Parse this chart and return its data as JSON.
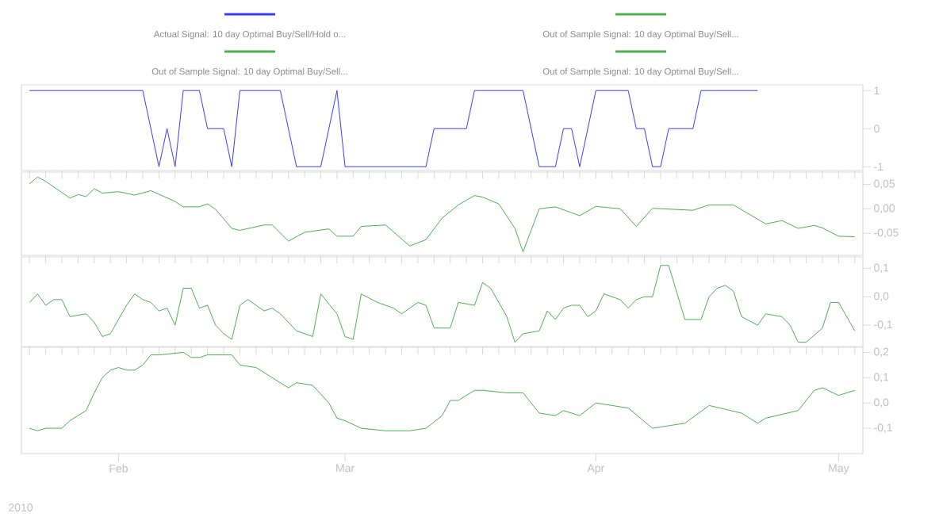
{
  "chart_data": [
    {
      "type": "line",
      "legend": "top",
      "tick_labels": "y",
      "xlim": [
        "2010-01-20",
        "2010-05-04"
      ],
      "ylim": [
        -1.1,
        1.15
      ],
      "yticks": [
        -1,
        0,
        1
      ],
      "series": [
        {
          "name": "Actual Signal: 10 day Optimal Buy/Sell/Hold o...",
          "color": "#3b3bff",
          "x": [
            "2010-01-21",
            "2010-02-04",
            "2010-02-06",
            "2010-02-07",
            "2010-02-08",
            "2010-02-09",
            "2010-02-11",
            "2010-02-12",
            "2010-02-14",
            "2010-02-15",
            "2010-02-16",
            "2010-02-21",
            "2010-02-23",
            "2010-02-26",
            "2010-02-28",
            "2010-03-01",
            "2010-03-11",
            "2010-03-12",
            "2010-03-16",
            "2010-03-17",
            "2010-03-23",
            "2010-03-25",
            "2010-03-27",
            "2010-03-28",
            "2010-03-29",
            "2010-03-30",
            "2010-04-01",
            "2010-04-05",
            "2010-04-06",
            "2010-04-07",
            "2010-04-08",
            "2010-04-09",
            "2010-04-10",
            "2010-04-13",
            "2010-04-14",
            "2010-04-21"
          ],
          "values": [
            1,
            1,
            -1,
            0,
            -1,
            1,
            1,
            0,
            0,
            -1,
            1,
            1,
            -1,
            -1,
            1,
            -1,
            -1,
            0,
            0,
            1,
            1,
            -1,
            -1,
            0,
            0,
            -1,
            1,
            1,
            0,
            0,
            -1,
            -1,
            0,
            0,
            1,
            1
          ]
        }
      ]
    },
    {
      "type": "line",
      "tick_labels": "y",
      "xlim": [
        "2010-01-20",
        "2010-05-04"
      ],
      "ylim": [
        -0.095,
        0.075
      ],
      "yticks": [
        {
          "value": -0.05,
          "label": "-0,05"
        },
        {
          "value": 0,
          "label": "0,00"
        },
        {
          "value": 0.05,
          "label": "0,05"
        }
      ],
      "series": [
        {
          "name": "Out of Sample Signal: 10 day Optimal Buy/Sell...",
          "color": "#4caf50",
          "x": [
            "2010-01-21",
            "2010-01-22",
            "2010-01-23",
            "2010-01-26",
            "2010-01-27",
            "2010-01-28",
            "2010-01-29",
            "2010-01-30",
            "2010-02-01",
            "2010-02-03",
            "2010-02-05",
            "2010-02-08",
            "2010-02-09",
            "2010-02-11",
            "2010-02-12",
            "2010-02-13",
            "2010-02-15",
            "2010-02-16",
            "2010-02-19",
            "2010-02-20",
            "2010-02-22",
            "2010-02-24",
            "2010-02-27",
            "2010-02-28",
            "2010-03-02",
            "2010-03-03",
            "2010-03-06",
            "2010-03-09",
            "2010-03-11",
            "2010-03-13",
            "2010-03-15",
            "2010-03-17",
            "2010-03-18",
            "2010-03-20",
            "2010-03-22",
            "2010-03-23",
            "2010-03-25",
            "2010-03-27",
            "2010-03-30",
            "2010-04-01",
            "2010-04-04",
            "2010-04-06",
            "2010-04-08",
            "2010-04-13",
            "2010-04-15",
            "2010-04-18",
            "2010-04-22",
            "2010-04-24",
            "2010-04-26",
            "2010-04-28",
            "2010-04-29",
            "2010-05-01",
            "2010-05-03"
          ],
          "values": [
            0.051,
            0.065,
            0.056,
            0.022,
            0.029,
            0.025,
            0.041,
            0.032,
            0.035,
            0.028,
            0.037,
            0.015,
            0.004,
            0.004,
            0.01,
            -0.001,
            -0.04,
            -0.044,
            -0.033,
            -0.033,
            -0.066,
            -0.048,
            -0.041,
            -0.056,
            -0.056,
            -0.036,
            -0.033,
            -0.076,
            -0.063,
            -0.019,
            0.008,
            0.027,
            0.024,
            0.01,
            -0.04,
            -0.088,
            0.0,
            0.004,
            -0.014,
            0.005,
            0.0,
            -0.036,
            0.001,
            -0.003,
            0.008,
            0.008,
            -0.031,
            -0.024,
            -0.04,
            -0.034,
            -0.039,
            -0.056,
            -0.057
          ]
        }
      ]
    },
    {
      "type": "line",
      "tick_labels": "y",
      "xlim": [
        "2010-01-20",
        "2010-05-04"
      ],
      "ylim": [
        -0.175,
        0.14
      ],
      "yticks": [
        {
          "value": -0.1,
          "label": "-0,1"
        },
        {
          "value": 0,
          "label": "0,0"
        },
        {
          "value": 0.1,
          "label": "0,1"
        }
      ],
      "series": [
        {
          "name": "Out of Sample Signal: 10 day Optimal Buy/Sell...",
          "color": "#4caf50",
          "x": [
            "2010-01-21",
            "2010-01-22",
            "2010-01-23",
            "2010-01-24",
            "2010-01-25",
            "2010-01-26",
            "2010-01-28",
            "2010-01-29",
            "2010-01-30",
            "2010-01-31",
            "2010-02-02",
            "2010-02-03",
            "2010-02-04",
            "2010-02-05",
            "2010-02-06",
            "2010-02-07",
            "2010-02-08",
            "2010-02-09",
            "2010-02-10",
            "2010-02-11",
            "2010-02-12",
            "2010-02-13",
            "2010-02-14",
            "2010-02-15",
            "2010-02-16",
            "2010-02-17",
            "2010-02-19",
            "2010-02-20",
            "2010-02-21",
            "2010-02-23",
            "2010-02-24",
            "2010-02-25",
            "2010-02-26",
            "2010-02-28",
            "2010-03-01",
            "2010-03-02",
            "2010-03-03",
            "2010-03-05",
            "2010-03-07",
            "2010-03-08",
            "2010-03-10",
            "2010-03-11",
            "2010-03-12",
            "2010-03-14",
            "2010-03-15",
            "2010-03-17",
            "2010-03-18",
            "2010-03-19",
            "2010-03-20",
            "2010-03-21",
            "2010-03-22",
            "2010-03-23",
            "2010-03-25",
            "2010-03-26",
            "2010-03-27",
            "2010-03-28",
            "2010-03-29",
            "2010-03-30",
            "2010-03-31",
            "2010-04-01",
            "2010-04-02",
            "2010-04-04",
            "2010-04-05",
            "2010-04-06",
            "2010-04-07",
            "2010-04-08",
            "2010-04-09",
            "2010-04-10",
            "2010-04-12",
            "2010-04-14",
            "2010-04-15",
            "2010-04-16",
            "2010-04-17",
            "2010-04-18",
            "2010-04-19",
            "2010-04-21",
            "2010-04-22",
            "2010-04-24",
            "2010-04-25",
            "2010-04-26",
            "2010-04-27",
            "2010-04-29",
            "2010-04-30",
            "2010-05-01",
            "2010-05-03"
          ],
          "values": [
            -0.02,
            0.01,
            -0.03,
            -0.01,
            -0.01,
            -0.07,
            -0.06,
            -0.09,
            -0.14,
            -0.13,
            -0.03,
            0.01,
            -0.01,
            -0.02,
            -0.05,
            -0.04,
            -0.1,
            0.03,
            0.03,
            -0.04,
            -0.03,
            -0.1,
            -0.13,
            -0.15,
            -0.03,
            -0.01,
            -0.05,
            -0.04,
            -0.06,
            -0.12,
            -0.13,
            -0.14,
            0.01,
            -0.06,
            -0.14,
            -0.15,
            0.01,
            -0.02,
            -0.04,
            -0.06,
            -0.02,
            -0.03,
            -0.11,
            -0.11,
            -0.02,
            -0.03,
            0.05,
            0.03,
            -0.02,
            -0.07,
            -0.16,
            -0.13,
            -0.12,
            -0.05,
            -0.08,
            -0.04,
            -0.03,
            -0.03,
            -0.07,
            -0.05,
            0.01,
            -0.01,
            -0.04,
            -0.01,
            0.0,
            0.0,
            0.11,
            0.11,
            -0.08,
            -0.08,
            0.0,
            0.03,
            0.04,
            0.02,
            -0.07,
            -0.1,
            -0.06,
            -0.07,
            -0.1,
            -0.16,
            -0.16,
            -0.11,
            -0.02,
            -0.02,
            -0.12
          ]
        }
      ]
    },
    {
      "type": "line",
      "xlim": [
        "2010-01-20",
        "2010-05-04"
      ],
      "ylim": [
        -0.2,
        0.22
      ],
      "yticks": [
        {
          "value": -0.1,
          "label": "-0,1"
        },
        {
          "value": 0,
          "label": "0,0"
        },
        {
          "value": 0.1,
          "label": "0,1"
        },
        {
          "value": 0.2,
          "label": "0,2"
        }
      ],
      "xticks": [
        {
          "value": "2010-02-01",
          "label": "Feb"
        },
        {
          "value": "2010-03-01",
          "label": "Mar"
        },
        {
          "value": "2010-04-01",
          "label": "Apr"
        },
        {
          "value": "2010-05-01",
          "label": "May"
        }
      ],
      "annotations": [
        "2010"
      ],
      "series": [
        {
          "name": "Out of Sample Signal: 10 day Optimal Buy/Sell...",
          "color": "#4caf50",
          "x": [
            "2010-01-21",
            "2010-01-22",
            "2010-01-23",
            "2010-01-25",
            "2010-01-26",
            "2010-01-28",
            "2010-01-29",
            "2010-01-30",
            "2010-01-31",
            "2010-02-01",
            "2010-02-02",
            "2010-02-03",
            "2010-02-04",
            "2010-02-05",
            "2010-02-06",
            "2010-02-09",
            "2010-02-10",
            "2010-02-11",
            "2010-02-12",
            "2010-02-15",
            "2010-02-16",
            "2010-02-18",
            "2010-02-19",
            "2010-02-22",
            "2010-02-23",
            "2010-02-25",
            "2010-02-27",
            "2010-02-28",
            "2010-03-01",
            "2010-03-03",
            "2010-03-06",
            "2010-03-09",
            "2010-03-11",
            "2010-03-13",
            "2010-03-14",
            "2010-03-15",
            "2010-03-17",
            "2010-03-18",
            "2010-03-21",
            "2010-03-23",
            "2010-03-25",
            "2010-03-27",
            "2010-03-28",
            "2010-03-30",
            "2010-04-01",
            "2010-04-03",
            "2010-04-05",
            "2010-04-08",
            "2010-04-12",
            "2010-04-15",
            "2010-04-19",
            "2010-04-21",
            "2010-04-22",
            "2010-04-26",
            "2010-04-28",
            "2010-04-29",
            "2010-05-01",
            "2010-05-03"
          ],
          "values": [
            -0.1,
            -0.11,
            -0.1,
            -0.1,
            -0.07,
            -0.03,
            0.04,
            0.1,
            0.13,
            0.14,
            0.13,
            0.13,
            0.15,
            0.19,
            0.19,
            0.2,
            0.18,
            0.18,
            0.19,
            0.19,
            0.15,
            0.14,
            0.12,
            0.06,
            0.08,
            0.07,
            0.0,
            -0.06,
            -0.07,
            -0.1,
            -0.11,
            -0.11,
            -0.1,
            -0.05,
            0.01,
            0.01,
            0.05,
            0.05,
            0.04,
            0.04,
            -0.04,
            -0.05,
            -0.03,
            -0.05,
            0.0,
            -0.01,
            -0.02,
            -0.1,
            -0.08,
            -0.01,
            -0.04,
            -0.08,
            -0.06,
            -0.03,
            0.05,
            0.06,
            0.03,
            0.05
          ]
        }
      ]
    }
  ]
}
